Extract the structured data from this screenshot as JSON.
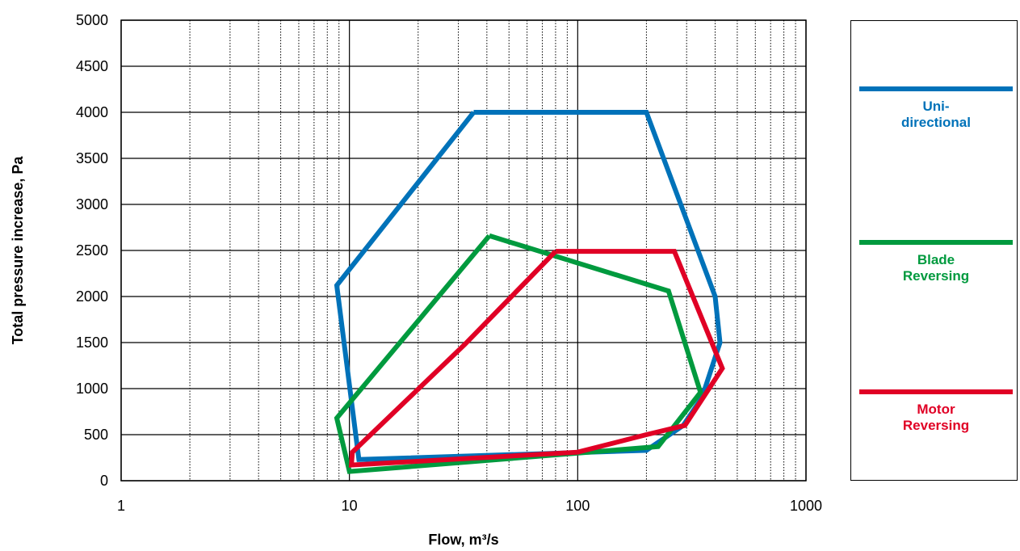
{
  "chart_data": {
    "type": "line",
    "xlabel": "Flow, m³/s",
    "ylabel": "Total pressure increase, Pa",
    "x_scale": "log",
    "xlim": [
      1,
      1000
    ],
    "ylim": [
      0,
      5000
    ],
    "x_ticks": [
      "1",
      "10",
      "100",
      "1000"
    ],
    "y_ticks": [
      "0",
      "500",
      "1000",
      "1500",
      "2000",
      "2500",
      "3000",
      "3500",
      "4000",
      "4500",
      "5000"
    ],
    "grid": true,
    "legend_position": "right",
    "series": [
      {
        "name": "Uni-\ndirectional",
        "color": "#0072b9",
        "points": [
          [
            35,
            4000
          ],
          [
            200,
            4000
          ],
          [
            400,
            2000
          ],
          [
            420,
            1500
          ],
          [
            350,
            900
          ],
          [
            290,
            600
          ],
          [
            200,
            330
          ],
          [
            11,
            230
          ],
          [
            8.8,
            2120
          ],
          [
            35,
            4000
          ]
        ]
      },
      {
        "name": "Blade\nReversing",
        "color": "#009a3e",
        "points": [
          [
            41,
            2660
          ],
          [
            250,
            2060
          ],
          [
            345,
            960
          ],
          [
            225,
            370
          ],
          [
            10,
            100
          ],
          [
            8.8,
            680
          ],
          [
            41,
            2660
          ]
        ]
      },
      {
        "name": "Motor\nReversing",
        "color": "#e00025",
        "points": [
          [
            80,
            2490
          ],
          [
            265,
            2490
          ],
          [
            430,
            1220
          ],
          [
            295,
            600
          ],
          [
            200,
            500
          ],
          [
            100,
            310
          ],
          [
            10.2,
            170
          ],
          [
            10.3,
            310
          ],
          [
            32,
            1480
          ],
          [
            80,
            2490
          ]
        ]
      }
    ]
  }
}
